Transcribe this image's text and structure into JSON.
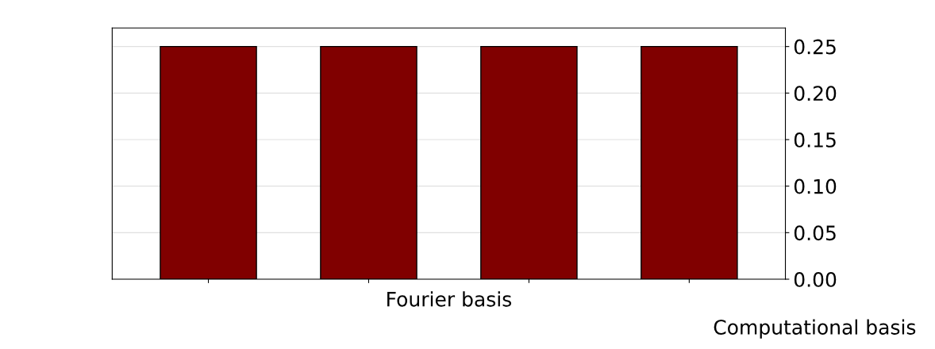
{
  "chart_data": {
    "type": "bar",
    "categories": [
      null,
      null,
      null,
      null
    ],
    "values": [
      0.25,
      0.25,
      0.25,
      0.25
    ],
    "color": "#800000",
    "xlabel": "Fourier basis",
    "annotations": [
      "Computational basis"
    ],
    "ylim": [
      0,
      0.27
    ],
    "yticks": [
      {
        "value": 0,
        "label": "0.00"
      },
      {
        "value": 0.05,
        "label": "0.05"
      },
      {
        "value": 0.1,
        "label": "0.10"
      },
      {
        "value": 0.15,
        "label": "0.15"
      },
      {
        "value": 0.2,
        "label": "0.20"
      },
      {
        "value": 0.25,
        "label": "0.25"
      }
    ],
    "grid": "y"
  }
}
